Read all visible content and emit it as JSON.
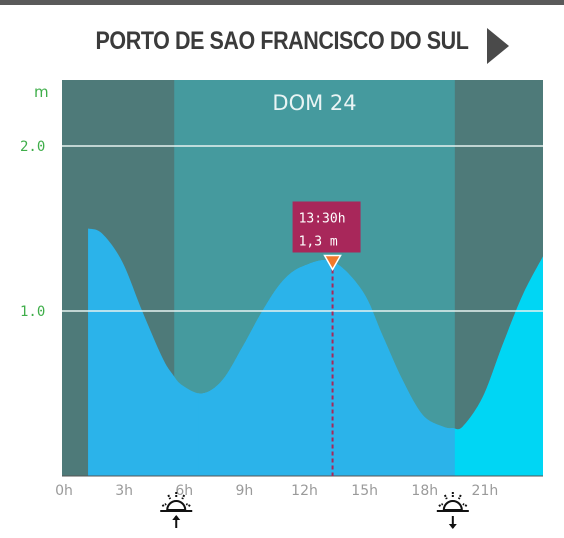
{
  "header": {
    "station": "PORTO DE SAO FRANCISCO DO SUL"
  },
  "chart_data": {
    "type": "area",
    "day_label": "DOM 24",
    "ylabel": "m",
    "xlim": [
      0,
      24
    ],
    "ylim": [
      0,
      2.4
    ],
    "x_ticks": [
      0,
      3,
      6,
      9,
      12,
      15,
      18,
      21
    ],
    "x_tick_labels": [
      "0h",
      "3h",
      "6h",
      "9h",
      "12h",
      "15h",
      "18h",
      "21h"
    ],
    "y_ticks": [
      1.0,
      2.0
    ],
    "y_tick_labels": [
      "1.0",
      "2.0"
    ],
    "grid": "horizontal",
    "daylight": {
      "start": 5.6,
      "end": 19.6
    },
    "night_area_color": "#2bb3ea",
    "day_area_color": "#00d6f4",
    "night_bg_color": "#4e7a79",
    "day_bg_color": "#459a9e",
    "series": [
      {
        "x": [
          1.3,
          2,
          3,
          4,
          5,
          5.5,
          6,
          7,
          8,
          9,
          10,
          11,
          12,
          13.5,
          15,
          16,
          17,
          18,
          19,
          19.5,
          20,
          21,
          22,
          23,
          24
        ],
        "values": [
          1.5,
          1.47,
          1.3,
          1.0,
          0.72,
          0.62,
          0.55,
          0.5,
          0.58,
          0.78,
          1.0,
          1.18,
          1.27,
          1.3,
          1.12,
          0.85,
          0.58,
          0.37,
          0.3,
          0.29,
          0.3,
          0.48,
          0.8,
          1.1,
          1.33
        ]
      }
    ],
    "highlight": {
      "time": "13:30h",
      "height": "1,3 m",
      "x": 13.5,
      "y": 1.3,
      "color": "#a8275a"
    },
    "sunrise": {
      "x": 5.6
    },
    "sunset": {
      "x": 19.6
    }
  }
}
